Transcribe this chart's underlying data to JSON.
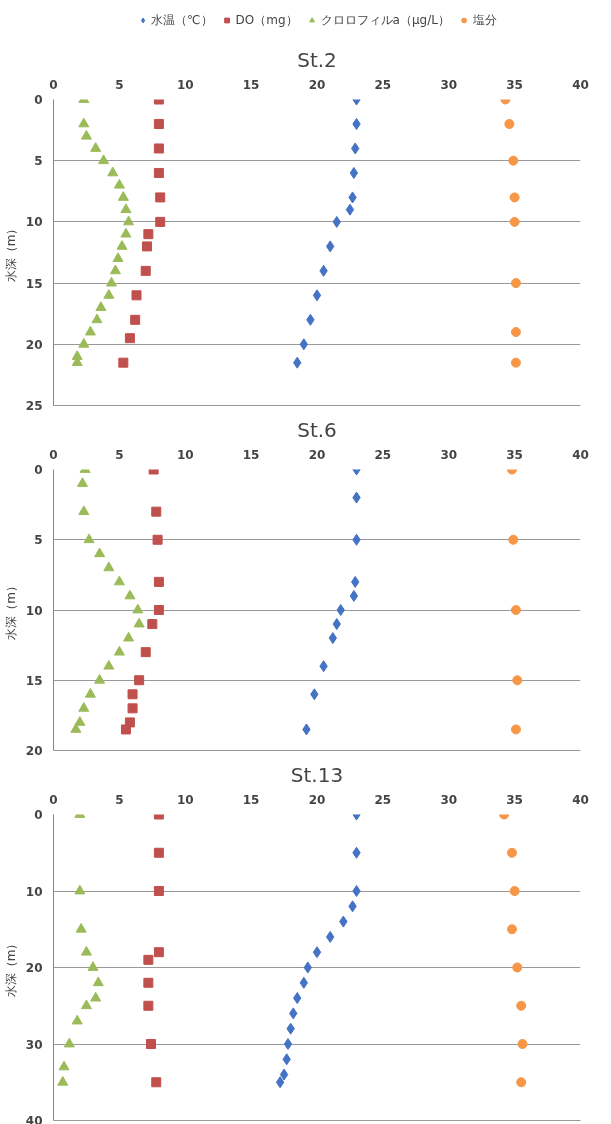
{
  "chart_data": [
    {
      "type": "scatter",
      "title": "St.2",
      "ylabel": "水深（m）",
      "xlim": [
        0,
        40
      ],
      "xticks": [
        0,
        5,
        10,
        15,
        20,
        25,
        30,
        35,
        40
      ],
      "ylim": [
        25,
        0
      ],
      "yticks": [
        0,
        5,
        10,
        15,
        20,
        25
      ],
      "grid": "y",
      "legend": "top",
      "series": [
        {
          "name": "水温（℃）",
          "color": "#4472c4",
          "marker": "diamond",
          "x": [
            23,
            23,
            22.9,
            22.8,
            22.7,
            22.5,
            21.5,
            21,
            20.5,
            20,
            19.5,
            19,
            18.5
          ],
          "values": [
            0,
            2,
            4,
            6,
            8,
            9,
            10,
            12,
            14,
            16,
            18,
            20,
            21.5
          ]
        },
        {
          "name": "DO（mg）",
          "color": "#c0504d",
          "marker": "square",
          "x": [
            8,
            8,
            8,
            8,
            8.1,
            8.1,
            7.2,
            7.1,
            7,
            6.3,
            6.2,
            5.8,
            5.3
          ],
          "values": [
            0,
            2,
            4,
            6,
            8,
            10,
            11,
            12,
            14,
            16,
            18,
            19.5,
            21.5
          ]
        },
        {
          "name": "クロロフィルa（μg/L）",
          "color": "#9bbb59",
          "marker": "triangle",
          "x": [
            2.3,
            2.3,
            2.5,
            3.2,
            3.8,
            4.5,
            5,
            5.3,
            5.5,
            5.7,
            5.5,
            5.2,
            4.9,
            4.7,
            4.4,
            4.2,
            3.6,
            3.3,
            2.8,
            2.3,
            1.8,
            1.8
          ],
          "values": [
            0,
            2,
            3,
            4,
            5,
            6,
            7,
            8,
            9,
            10,
            11,
            12,
            13,
            14,
            15,
            16,
            17,
            18,
            19,
            20,
            21,
            21.5
          ]
        },
        {
          "name": "塩分",
          "color": "#f79646",
          "marker": "circle",
          "x": [
            34.3,
            34.6,
            34.9,
            35,
            35,
            35.1,
            35.1,
            35.1
          ],
          "values": [
            0,
            2,
            5,
            8,
            10,
            15,
            19,
            21.5
          ]
        }
      ]
    },
    {
      "type": "scatter",
      "title": "St.6",
      "ylabel": "水深（m）",
      "xlim": [
        0,
        40
      ],
      "xticks": [
        0,
        5,
        10,
        15,
        20,
        25,
        30,
        35,
        40
      ],
      "ylim": [
        20,
        0
      ],
      "yticks": [
        0,
        5,
        10,
        15,
        20
      ],
      "grid": "y",
      "series": [
        {
          "color": "#4472c4",
          "marker": "diamond",
          "x": [
            23,
            23,
            23,
            22.9,
            22.8,
            21.8,
            21.5,
            21.2,
            20.5,
            19.8,
            19.2
          ],
          "values": [
            0,
            2,
            5,
            8,
            9,
            10,
            11,
            12,
            14,
            16,
            18.5
          ]
        },
        {
          "color": "#c0504d",
          "marker": "square",
          "x": [
            7.6,
            7.8,
            7.9,
            8,
            8,
            7.5,
            7,
            6.5,
            6,
            6,
            5.8,
            5.5
          ],
          "values": [
            0,
            3,
            5,
            8,
            10,
            11,
            13,
            15,
            16,
            17,
            18,
            18.5
          ]
        },
        {
          "color": "#9bbb59",
          "marker": "triangle",
          "x": [
            2.4,
            2.2,
            2.3,
            2.7,
            3.5,
            4.2,
            5,
            5.8,
            6.4,
            6.5,
            5.7,
            5,
            4.2,
            3.5,
            2.8,
            2.3,
            2,
            1.7
          ],
          "values": [
            0,
            1,
            3,
            5,
            6,
            7,
            8,
            9,
            10,
            11,
            12,
            13,
            14,
            15,
            16,
            17,
            18,
            18.5
          ]
        },
        {
          "color": "#f79646",
          "marker": "circle",
          "x": [
            34.8,
            34.9,
            35.1,
            35.2,
            35.1
          ],
          "values": [
            0,
            5,
            10,
            15,
            18.5
          ]
        }
      ]
    },
    {
      "type": "scatter",
      "title": "St.13",
      "ylabel": "水深（m）",
      "xlim": [
        0,
        40
      ],
      "xticks": [
        0,
        5,
        10,
        15,
        20,
        25,
        30,
        35,
        40
      ],
      "ylim": [
        40,
        0
      ],
      "yticks": [
        0,
        10,
        20,
        30,
        40
      ],
      "grid": "y",
      "series": [
        {
          "color": "#4472c4",
          "marker": "diamond",
          "x": [
            23,
            23,
            23,
            22.7,
            22,
            21,
            20,
            19.3,
            19,
            18.5,
            18.2,
            18,
            17.8,
            17.7,
            17.5,
            17.2
          ],
          "values": [
            0,
            5,
            10,
            12,
            14,
            16,
            18,
            20,
            22,
            24,
            26,
            28,
            30,
            32,
            34,
            35
          ]
        },
        {
          "color": "#c0504d",
          "marker": "square",
          "x": [
            8,
            8,
            8,
            8,
            7.2,
            7.2,
            7.2,
            7.4,
            7.8
          ],
          "values": [
            0,
            5,
            10,
            18,
            19,
            22,
            25,
            30,
            35
          ]
        },
        {
          "color": "#9bbb59",
          "marker": "triangle",
          "x": [
            2,
            2,
            2.1,
            2.5,
            3,
            3.4,
            3.2,
            2.5,
            1.8,
            1.2,
            0.8,
            0.7
          ],
          "values": [
            0,
            10,
            15,
            18,
            20,
            22,
            24,
            25,
            27,
            30,
            33,
            35
          ]
        },
        {
          "color": "#f79646",
          "marker": "circle",
          "x": [
            34.2,
            34.8,
            35,
            34.8,
            35.2,
            35.5,
            35.6,
            35.5
          ],
          "values": [
            0,
            5,
            10,
            15,
            20,
            25,
            30,
            35
          ]
        }
      ]
    }
  ]
}
